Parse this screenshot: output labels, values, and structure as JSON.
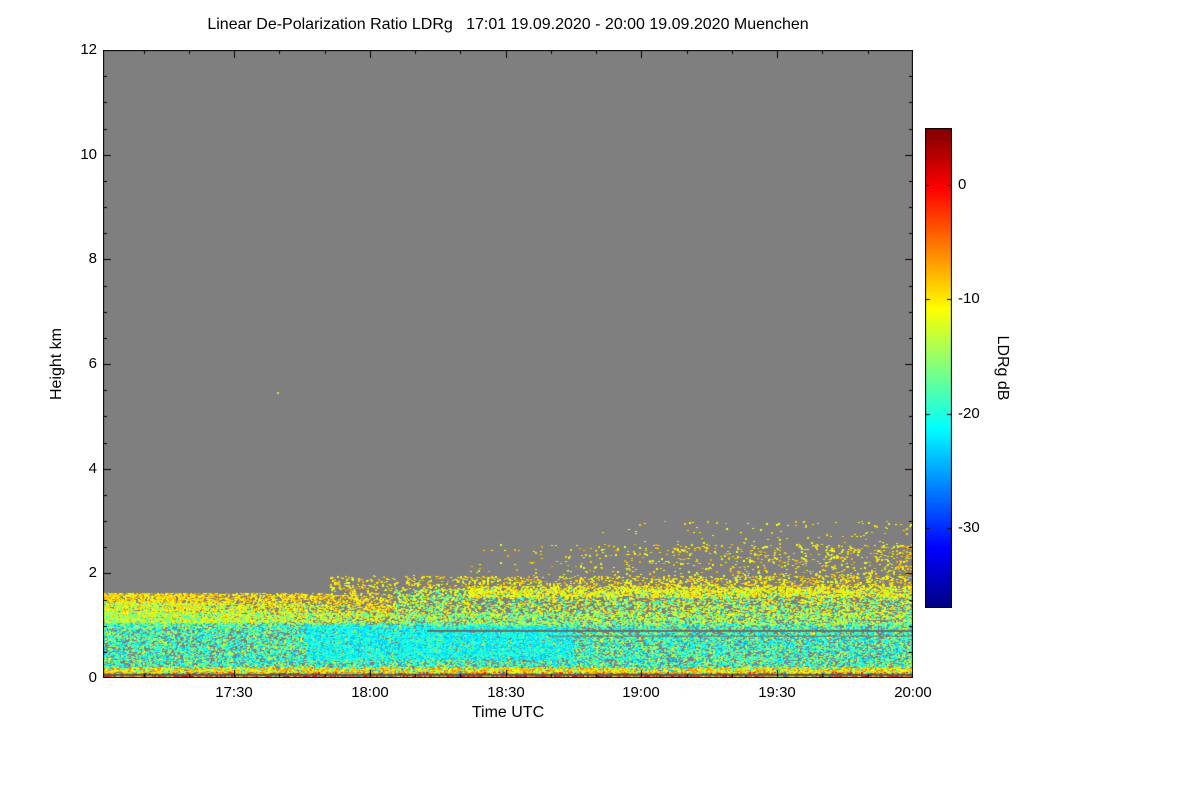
{
  "chart_data": {
    "type": "heatmap",
    "title": "Linear De-Polarization Ratio LDRg   17:01 19.09.2020 - 20:00 19.09.2020 Muenchen",
    "xlabel": "Time UTC",
    "ylabel": "Height km",
    "x_start": "17:01",
    "x_end": "20:00",
    "x_total_minutes": 179,
    "x_ticks": [
      {
        "label": "17:30",
        "minutes": 29
      },
      {
        "label": "18:00",
        "minutes": 59
      },
      {
        "label": "18:30",
        "minutes": 89
      },
      {
        "label": "19:00",
        "minutes": 119
      },
      {
        "label": "19:30",
        "minutes": 149
      },
      {
        "label": "20:00",
        "minutes": 179
      }
    ],
    "x_minor_step_minutes": 10,
    "y_ticks": [
      0,
      2,
      4,
      6,
      8,
      10,
      12
    ],
    "y_minor_step": 0.5,
    "ylim": [
      0,
      12
    ],
    "background_color": "#7f7f7f",
    "axis_color": "#000000",
    "colorbar": {
      "label": "LDRg dB",
      "ticks": [
        0,
        -10,
        -20,
        -30
      ],
      "vmin": -37,
      "vmax": 5,
      "colormap": "jet"
    },
    "seed": 42,
    "point_size": [
      2,
      1
    ],
    "speckle_layers": [
      {
        "name": "yellow-band-dense",
        "t0": 0.0,
        "t1": 0.36,
        "h0": 1.05,
        "h1": 1.62,
        "count": 6500,
        "vmin": -12,
        "vmax": -7,
        "fade": "right"
      },
      {
        "name": "yellow-band-green",
        "t0": 0.0,
        "t1": 0.36,
        "h0": 0.95,
        "h1": 1.45,
        "count": 2500,
        "vmin": -17,
        "vmax": -11,
        "fade": "right"
      },
      {
        "name": "band-breakup",
        "t0": 0.28,
        "t1": 1.0,
        "h0": 1.15,
        "h1": 1.95,
        "count": 3000,
        "vmin": -13,
        "vmax": -7,
        "fade": "none"
      },
      {
        "name": "green-layer",
        "t0": 0.0,
        "t1": 1.0,
        "h0": 0.05,
        "h1": 1.25,
        "count": 12000,
        "vmin": -19,
        "vmax": -11,
        "fade": "none"
      },
      {
        "name": "cyan-layer",
        "t0": 0.0,
        "t1": 1.0,
        "h0": 0.05,
        "h1": 1.05,
        "count": 11000,
        "vmin": -24,
        "vmax": -16,
        "fade": "none"
      },
      {
        "name": "cyan-patch",
        "t0": 0.25,
        "t1": 0.58,
        "h0": 0.35,
        "h1": 1.0,
        "count": 5000,
        "vmin": -24,
        "vmax": -18,
        "fade": "none"
      },
      {
        "name": "surface-layer",
        "t0": 0.0,
        "t1": 1.0,
        "h0": 0.0,
        "h1": 0.2,
        "count": 5000,
        "vmin": -14,
        "vmax": -5,
        "fade": "none"
      },
      {
        "name": "surface-hot",
        "t0": 0.0,
        "t1": 1.0,
        "h0": 0.0,
        "h1": 0.1,
        "count": 900,
        "vmin": -5,
        "vmax": 1,
        "fade": "none"
      },
      {
        "name": "upper-sparse",
        "t0": 0.45,
        "t1": 1.0,
        "h0": 1.7,
        "h1": 2.55,
        "count": 1600,
        "vmin": -13,
        "vmax": -7,
        "fade": "left"
      },
      {
        "name": "upper-very-sparse",
        "t0": 0.6,
        "t1": 1.0,
        "h0": 2.3,
        "h1": 3.0,
        "count": 220,
        "vmin": -12,
        "vmax": -8,
        "fade": "left"
      },
      {
        "name": "mid-mixed",
        "t0": 0.36,
        "t1": 1.0,
        "h0": 1.0,
        "h1": 1.7,
        "count": 4000,
        "vmin": -21,
        "vmax": -9,
        "fade": "none"
      },
      {
        "name": "mid-top-edge",
        "t0": 0.45,
        "t1": 1.0,
        "h0": 1.55,
        "h1": 1.75,
        "count": 1500,
        "vmin": -14,
        "vmax": -8,
        "fade": "none"
      }
    ],
    "stripes": [
      {
        "t0": 0.4,
        "t1": 1.0,
        "h": 0.9,
        "thickness": 2,
        "color": "#6b6b6b"
      },
      {
        "t0": 0.55,
        "t1": 1.0,
        "h": 0.8,
        "thickness": 1,
        "color": "#6f6f6f"
      },
      {
        "t0": 0.0,
        "t1": 1.0,
        "h": 0.06,
        "thickness": 2,
        "color": "#555555"
      }
    ],
    "lone_points": [
      {
        "t": 0.215,
        "h": 5.45,
        "v": -9
      },
      {
        "t": 0.955,
        "h": 2.9,
        "v": -9
      }
    ]
  }
}
